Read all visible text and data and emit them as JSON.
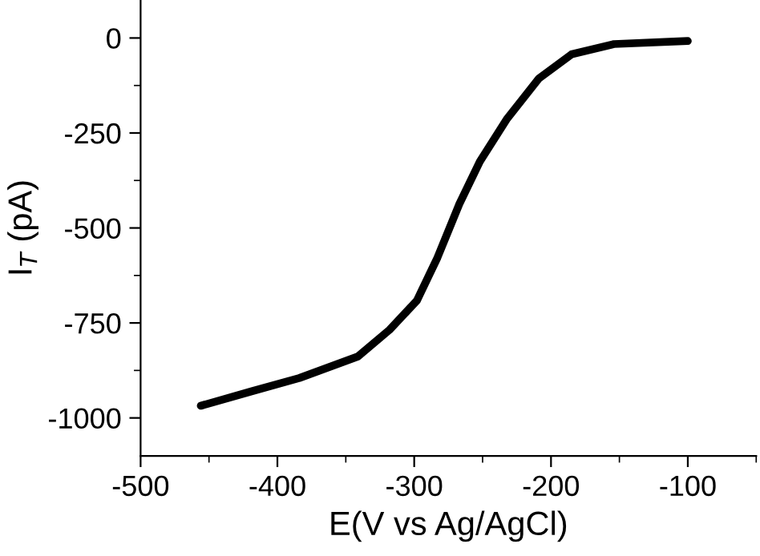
{
  "chart_data": {
    "type": "line",
    "xlabel": "E(V vs Ag/AgCl)",
    "ylabel": "I$_{T}$ (pA)",
    "x": [
      -456,
      -419,
      -384,
      -341,
      -318,
      -298,
      -283,
      -267,
      -252,
      -232,
      -209,
      -185,
      -154,
      -100
    ],
    "series": [
      {
        "color": "#000000",
        "values": [
          -968,
          -930,
          -895,
          -838,
          -768,
          -691,
          -578,
          -437,
          -325,
          -212,
          -107,
          -43,
          -16,
          -8
        ]
      }
    ],
    "xlim": [
      -500,
      -50
    ],
    "xticks": [
      -500,
      -400,
      -300,
      -200,
      -100
    ],
    "ylim": [
      -1100,
      100
    ],
    "yticks": [
      -1000,
      -750,
      -500,
      -250,
      0
    ],
    "grid": false,
    "legend": false,
    "marker": "none",
    "line_style": "solid"
  }
}
